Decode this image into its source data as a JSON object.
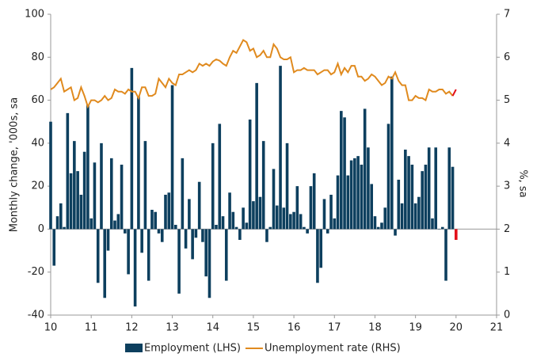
{
  "chart_data": {
    "type": "combo",
    "ylabel": "Monthly change, '000s, sa",
    "y2label": "%, sa",
    "x": [
      10,
      10.083,
      10.167,
      10.25,
      10.333,
      10.417,
      10.5,
      10.583,
      10.667,
      10.75,
      10.833,
      10.917,
      11,
      11.083,
      11.167,
      11.25,
      11.333,
      11.417,
      11.5,
      11.583,
      11.667,
      11.75,
      11.833,
      11.917,
      12,
      12.083,
      12.167,
      12.25,
      12.333,
      12.417,
      12.5,
      12.583,
      12.667,
      12.75,
      12.833,
      12.917,
      13,
      13.083,
      13.167,
      13.25,
      13.333,
      13.417,
      13.5,
      13.583,
      13.667,
      13.75,
      13.833,
      13.917,
      14,
      14.083,
      14.167,
      14.25,
      14.333,
      14.417,
      14.5,
      14.583,
      14.667,
      14.75,
      14.833,
      14.917,
      15,
      15.083,
      15.167,
      15.25,
      15.333,
      15.417,
      15.5,
      15.583,
      15.667,
      15.75,
      15.833,
      15.917,
      16,
      16.083,
      16.167,
      16.25,
      16.333,
      16.417,
      16.5,
      16.583,
      16.667,
      16.75,
      16.833,
      16.917,
      17,
      17.083,
      17.167,
      17.25,
      17.333,
      17.417,
      17.5,
      17.583,
      17.667,
      17.75,
      17.833,
      17.917,
      18,
      18.083,
      18.167,
      18.25,
      18.333,
      18.417,
      18.5,
      18.583,
      18.667,
      18.75,
      18.833,
      18.917,
      19,
      19.083,
      19.167,
      19.25,
      19.333,
      19.417,
      19.5,
      19.583,
      19.667,
      19.75,
      19.833,
      19.917
    ],
    "xlim": [
      10,
      21
    ],
    "xticks": [
      10,
      11,
      12,
      13,
      14,
      15,
      16,
      17,
      18,
      19,
      20,
      21
    ],
    "ylim": [
      -40,
      100
    ],
    "yticks": [
      -40,
      -20,
      0,
      20,
      40,
      60,
      80,
      100
    ],
    "y2lim": [
      0,
      7
    ],
    "y2ticks": [
      0,
      1,
      2,
      3,
      4,
      5,
      6,
      7
    ],
    "series": [
      {
        "name": "Employment (LHS)",
        "type": "bar",
        "color": "#0d3f5e",
        "values": [
          50,
          -17,
          6,
          12,
          1,
          54,
          26,
          41,
          27,
          16,
          36,
          58,
          5,
          31,
          -25,
          40,
          -32,
          -10,
          33,
          4,
          7,
          30,
          -2,
          -21,
          75,
          -36,
          62,
          -11,
          41,
          -24,
          9,
          8,
          -2,
          -6,
          16,
          17,
          67,
          2,
          -30,
          33,
          -9,
          14,
          -14,
          -4,
          22,
          -6,
          -22,
          -32,
          40,
          2,
          49,
          6,
          -24,
          17,
          8,
          1,
          -5,
          10,
          3,
          51,
          13,
          68,
          15,
          41,
          -6,
          1,
          28,
          11,
          76,
          10,
          40,
          7,
          8,
          20,
          7,
          1,
          -2,
          20,
          26,
          -25,
          -18,
          14,
          -2,
          16,
          5,
          25,
          55,
          52,
          25,
          32,
          33,
          34,
          30,
          56,
          38,
          21,
          6,
          1,
          3,
          10,
          49,
          71,
          -3,
          23,
          12,
          37,
          34,
          30,
          12,
          15,
          27,
          30,
          38,
          5,
          38,
          0,
          1,
          -24,
          38,
          29
        ]
      },
      {
        "name": "Unemployment rate (RHS)",
        "type": "line",
        "axis": "y2",
        "color": "#e08a1e",
        "values": [
          5.25,
          5.3,
          5.4,
          5.5,
          5.2,
          5.25,
          5.3,
          5.0,
          5.05,
          5.3,
          5.1,
          4.85,
          5.0,
          5.0,
          4.95,
          5.0,
          5.1,
          5.0,
          5.05,
          5.25,
          5.2,
          5.2,
          5.15,
          5.25,
          5.2,
          5.2,
          5.05,
          5.3,
          5.3,
          5.1,
          5.1,
          5.15,
          5.5,
          5.4,
          5.3,
          5.5,
          5.4,
          5.35,
          5.6,
          5.6,
          5.65,
          5.7,
          5.65,
          5.7,
          5.85,
          5.8,
          5.85,
          5.8,
          5.9,
          5.95,
          5.92,
          5.85,
          5.8,
          6.0,
          6.15,
          6.1,
          6.25,
          6.4,
          6.35,
          6.15,
          6.2,
          6.0,
          6.05,
          6.15,
          6.0,
          6.0,
          6.3,
          6.2,
          6.0,
          5.95,
          5.95,
          6.0,
          5.65,
          5.7,
          5.7,
          5.75,
          5.7,
          5.7,
          5.7,
          5.6,
          5.65,
          5.7,
          5.7,
          5.6,
          5.65,
          5.85,
          5.6,
          5.75,
          5.65,
          5.8,
          5.8,
          5.55,
          5.55,
          5.45,
          5.5,
          5.6,
          5.55,
          5.45,
          5.35,
          5.4,
          5.55,
          5.5,
          5.65,
          5.45,
          5.35,
          5.35,
          5.0,
          5.0,
          5.1,
          5.05,
          5.05,
          5.0,
          5.25,
          5.2,
          5.2,
          5.25,
          5.25,
          5.15,
          5.2,
          5.1
        ]
      },
      {
        "type": "bar",
        "color": "#e3101a",
        "x": [
          20
        ],
        "values": [
          -5
        ]
      },
      {
        "type": "line",
        "axis": "y2",
        "color": "#e3101a",
        "x": [
          19.917,
          20
        ],
        "values": [
          5.1,
          5.25
        ]
      }
    ]
  }
}
